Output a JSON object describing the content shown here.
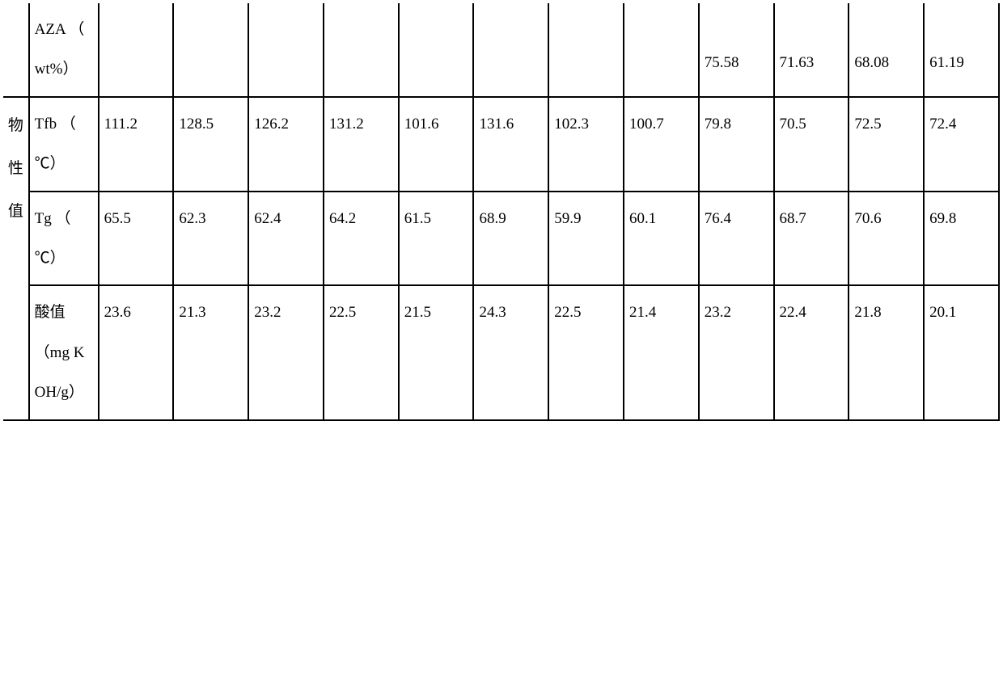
{
  "rowHeader": "物性值",
  "rows": [
    {
      "label": "AZA （ wt%）",
      "values": [
        "",
        "",
        "",
        "",
        "",
        "",
        "",
        "",
        "75.58",
        "71.63",
        "68.08",
        "61.19"
      ],
      "bottomAlign": true
    },
    {
      "label": "Tfb （ ℃）",
      "values": [
        "111.2",
        "128.5",
        "126.2",
        "131.2",
        "101.6",
        "131.6",
        "102.3",
        "100.7",
        "79.8",
        "70.5",
        "72.5",
        "72.4"
      ]
    },
    {
      "label": "Tg （ ℃）",
      "values": [
        "65.5",
        "62.3",
        "62.4",
        "64.2",
        "61.5",
        "68.9",
        "59.9",
        "60.1",
        "76.4",
        "68.7",
        "70.6",
        "69.8"
      ]
    },
    {
      "label": "酸值 （mg KOH/g）",
      "values": [
        "23.6",
        "21.3",
        "23.2",
        "22.5",
        "21.5",
        "24.3",
        "22.5",
        "21.4",
        "23.2",
        "22.4",
        "21.8",
        "20.1"
      ]
    }
  ]
}
